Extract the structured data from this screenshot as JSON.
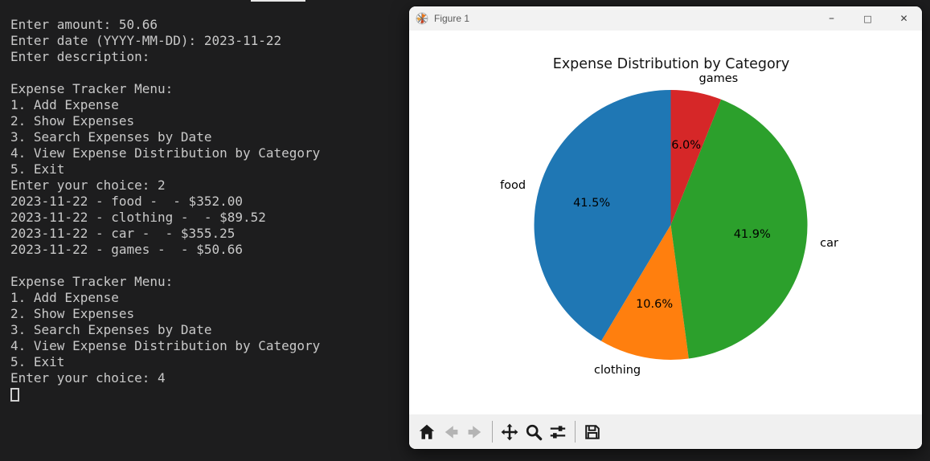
{
  "terminal": {
    "lines": [
      "Enter amount: 50.66",
      "Enter date (YYYY-MM-DD): 2023-11-22",
      "Enter description:",
      "",
      "Expense Tracker Menu:",
      "1. Add Expense",
      "2. Show Expenses",
      "3. Search Expenses by Date",
      "4. View Expense Distribution by Category",
      "5. Exit",
      "Enter your choice: 2",
      "2023-11-22 - food -  - $352.00",
      "2023-11-22 - clothing -  - $89.52",
      "2023-11-22 - car -  - $355.25",
      "2023-11-22 - games -  - $50.66",
      "",
      "Expense Tracker Menu:",
      "1. Add Expense",
      "2. Show Expenses",
      "3. Search Expenses by Date",
      "4. View Expense Distribution by Category",
      "5. Exit",
      "Enter your choice: 4"
    ],
    "cursor_visible": true,
    "background": "#1d1d1e",
    "text_color": "#c9c9c9"
  },
  "figure_window": {
    "title": "Figure 1",
    "app_icon": "matplotlib-logo",
    "controls": {
      "minimize_glyph": "–",
      "maximize_glyph": "□",
      "close_glyph": "✕"
    },
    "toolbar": {
      "items": [
        "home",
        "back",
        "forward",
        "|",
        "pan",
        "zoom",
        "configure-subplots",
        "|",
        "save"
      ],
      "disabled": [
        "back",
        "forward"
      ]
    }
  },
  "chart_data": {
    "type": "pie",
    "title": "Expense Distribution by Category",
    "categories": [
      "food",
      "clothing",
      "car",
      "games"
    ],
    "values": [
      41.5,
      10.6,
      41.9,
      6.0
    ],
    "percent_labels": [
      "41.5%",
      "10.6%",
      "41.9%",
      "6.0%"
    ],
    "colors": [
      "#1f77b4",
      "#ff7f0e",
      "#2ca02c",
      "#d62728"
    ],
    "start_angle": 90,
    "counterclock": true,
    "legend": false,
    "background": "#ffffff"
  }
}
